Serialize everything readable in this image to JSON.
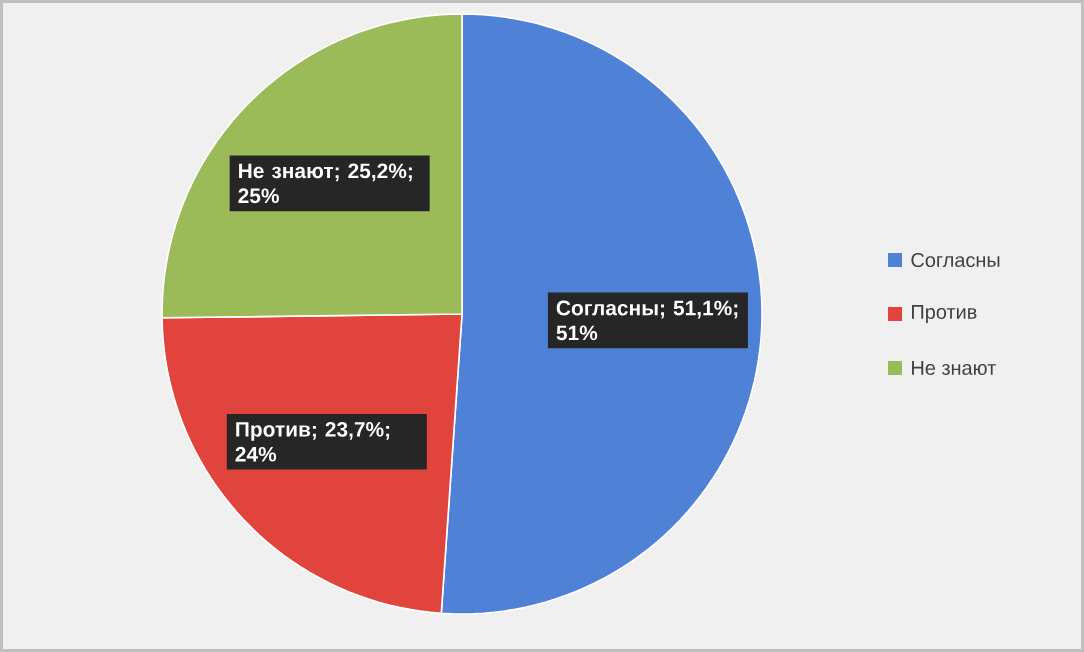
{
  "chart_data": {
    "type": "pie",
    "categories": [
      "Согласны",
      "Против",
      "Не знают"
    ],
    "values": [
      51.1,
      23.7,
      25.2
    ],
    "colors": [
      "#4f81d6",
      "#e0443c",
      "#9bbb59"
    ],
    "value_labels": [
      "Согласны; 51,1%; 51%",
      "Против; 23,7%; 24%",
      "Не знают; 25,2%; 25%"
    ],
    "legend": "right"
  }
}
